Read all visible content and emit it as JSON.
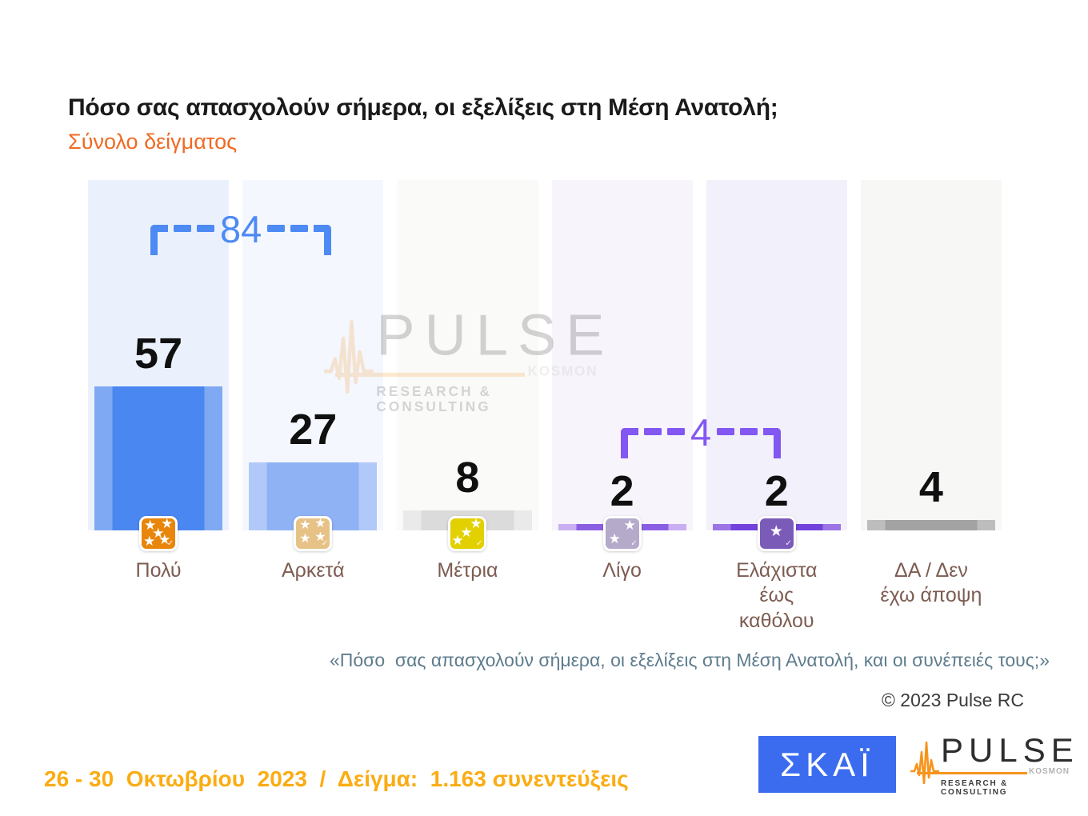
{
  "header": {
    "title": "Πόσο σας απασχολούν σήμερα, οι εξελίξεις στη Μέση Ανατολή;",
    "subtitle": "Σύνολο δείγματος"
  },
  "chart_data": {
    "type": "bar",
    "title": "Πόσο σας απασχολούν σήμερα, οι εξελίξεις στη Μέση Ανατολή;",
    "subtitle": "Σύνολο δείγματος",
    "categories": [
      "Πολύ",
      "Αρκετά",
      "Μέτρια",
      "Λίγο",
      "Ελάχιστα έως καθόλου",
      "ΔΑ / Δεν έχω άποψη"
    ],
    "values": [
      57,
      27,
      8,
      2,
      2,
      4
    ],
    "grid": false,
    "legend": false,
    "brackets": [
      {
        "label": "84",
        "sum_of": [
          "Πολύ",
          "Αρκετά"
        ],
        "color": "#4E8AF4"
      },
      {
        "label": "4",
        "sum_of": [
          "Λίγο",
          "Ελάχιστα έως καθόλου"
        ],
        "color": "#8257F2"
      }
    ],
    "bars": [
      {
        "label": "Πολύ",
        "value": 57,
        "bar_center": "#4B87F0",
        "bar_edge": "#7FA9F2",
        "column_bg": "#EBF1FC",
        "icon": {
          "name": "five-stars",
          "color": "#E8860B",
          "stars": 5
        }
      },
      {
        "label": "Αρκετά",
        "value": 27,
        "bar_center": "#8FB2F4",
        "bar_edge": "#B0C9F9",
        "column_bg": "#F4F7FE",
        "icon": {
          "name": "four-stars",
          "color": "#E7C287",
          "stars": 4
        }
      },
      {
        "label": "Μέτρια",
        "value": 8,
        "bar_center": "#DBDBDB",
        "bar_edge": "#EAEAEA",
        "column_bg": "#FAFAF9",
        "icon": {
          "name": "three-stars",
          "color": "#E3D000",
          "stars": 3
        }
      },
      {
        "label": "Λίγο",
        "value": 2,
        "bar_center": "#8B5FE3",
        "bar_edge": "#C9AFF2",
        "column_bg": "#F7F4FB",
        "icon": {
          "name": "two-stars",
          "color": "#B5AACA",
          "stars": 2
        }
      },
      {
        "label": "Ελάχιστα\nέως\nκαθόλου",
        "value": 2,
        "bar_center": "#7143DC",
        "bar_edge": "#9B74E6",
        "column_bg": "#F2F0FA",
        "icon": {
          "name": "one-star",
          "color": "#7B5BB8",
          "stars": 1
        }
      },
      {
        "label": "ΔΑ / Δεν\nέχω άποψη",
        "value": 4,
        "bar_center": "#A3A3A3",
        "bar_edge": "#BDBDBD",
        "column_bg": "#F7F7F6",
        "icon": null
      }
    ]
  },
  "footnote": "«Πόσο  σας απασχολούν σήμερα, οι εξελίξεις στη Μέση Ανατολή, και οι συνέπειές τους;»",
  "copyright": "© 2023 Pulse RC",
  "fieldwork": "26 - 30  Οκτωβρίου  2023  /  Δείγμα:  1.163 συνεντεύξεις",
  "brand": {
    "skai": "ΣΚΑΪ",
    "skai_bg": "#3B6CF0",
    "pulse": {
      "name": "PULSE",
      "sub": "KOSMON",
      "tagline": "RESEARCH & CONSULTING",
      "wave_color": "#F7941D"
    }
  },
  "colors": {
    "subtitle": "#F06A22",
    "fieldwork": "#FBAC12",
    "footnote": "#5E7C8D",
    "category_label": "#7D5C52",
    "value_label": "#101010"
  }
}
